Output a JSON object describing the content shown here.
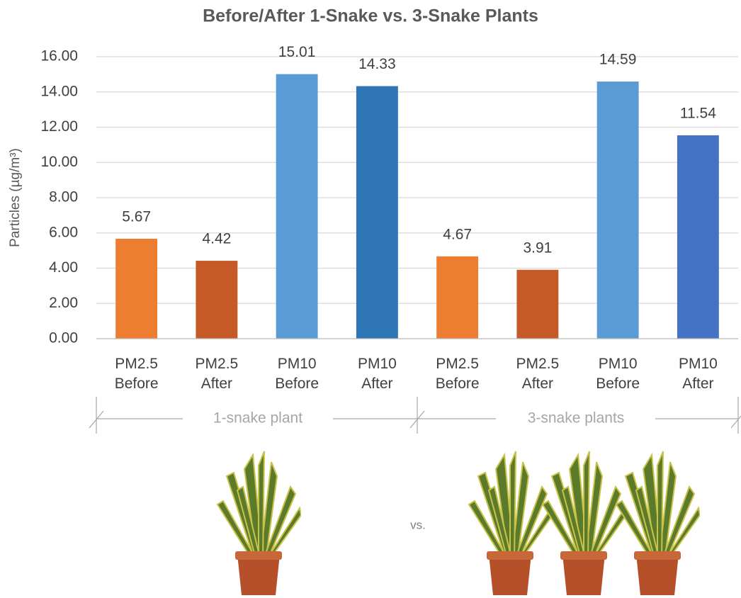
{
  "chart_data": {
    "type": "bar",
    "title": "Before/After 1-Snake vs. 3-Snake Plants",
    "y_label": "Particles (µg/m³)",
    "categories": [
      "PM2.5 Before",
      "PM2.5 After",
      "PM10 Before",
      "PM10 After",
      "PM2.5 Before",
      "PM2.5 After",
      "PM10 Before",
      "PM10 After"
    ],
    "values": [
      5.67,
      4.42,
      15.01,
      14.33,
      4.67,
      3.91,
      14.59,
      11.54
    ],
    "colors": [
      "#ed7d31",
      "#c55a28",
      "#5b9bd5",
      "#2e75b6",
      "#ed7d31",
      "#c55a28",
      "#5b9bd5",
      "#4472c4"
    ],
    "groups": [
      "1-snake plant",
      "3-snake plants"
    ],
    "comparison_label": "vs.",
    "ylim": [
      0,
      16
    ],
    "yticks": [
      {
        "value": 0,
        "label": "0.00"
      },
      {
        "value": 2,
        "label": "2.00"
      },
      {
        "value": 4,
        "label": "4.00"
      },
      {
        "value": 6,
        "label": "6.00"
      },
      {
        "value": 8,
        "label": "8.00"
      },
      {
        "value": 10,
        "label": "10.00"
      },
      {
        "value": 12,
        "label": "12.00"
      },
      {
        "value": 14,
        "label": "14.00"
      },
      {
        "value": 16,
        "label": "16.00"
      }
    ],
    "grid": true
  }
}
